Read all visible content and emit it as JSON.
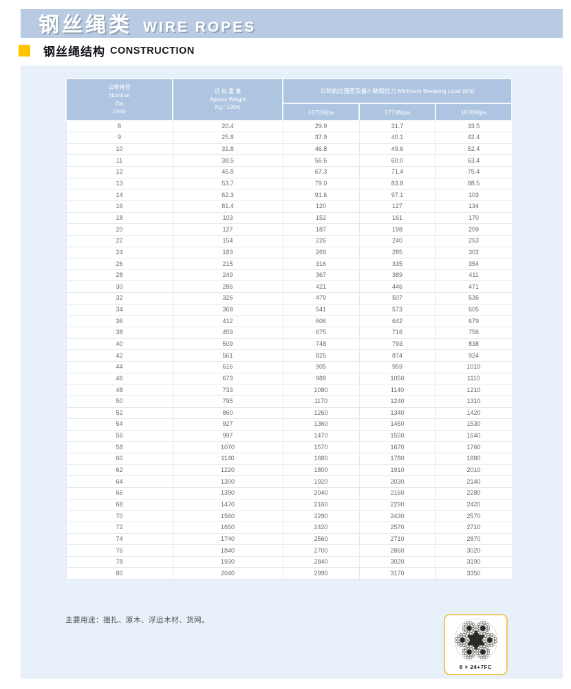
{
  "page": {
    "title_cn": "钢丝绳类",
    "title_en": "WIRE ROPES",
    "section_cn": "钢丝绳结构",
    "section_en": "CONSTRUCTION",
    "footer_note": "主要用途：捆扎、原木、浮运木材、货网。",
    "diagram_label": "6 × 24+7FC"
  },
  "colors": {
    "banner_bg": "#b8cbe2",
    "accent_yellow": "#ffc501",
    "panel_bg": "#e8f0f9",
    "table_header_bg": "#aec5e1",
    "body_text": "#68696c",
    "diagram_border": "#ecc95a"
  },
  "table": {
    "col1_header": [
      "公称直径",
      "Nominal",
      "Dia",
      "(mm)"
    ],
    "col2_header": [
      "近 似 重 量",
      "Approx Weight",
      "Kg / 100m"
    ],
    "merged_header": "公称抗拉强度及最小破断拉力 Minimum Breaking Load (KN)",
    "sub_headers": [
      "1670Mpa",
      "1770Mpa",
      "1870Mpa"
    ],
    "rows": [
      [
        "8",
        "20.4",
        "29.9",
        "31.7",
        "33.5"
      ],
      [
        "9",
        "25.8",
        "37.9",
        "40.1",
        "42.4"
      ],
      [
        "10",
        "31.8",
        "46.8",
        "49.6",
        "52.4"
      ],
      [
        "11",
        "38.5",
        "56.6",
        "60.0",
        "63.4"
      ],
      [
        "12",
        "45.8",
        "67.3",
        "71.4",
        "75.4"
      ],
      [
        "13",
        "53.7",
        "79.0",
        "83.8",
        "88.5"
      ],
      [
        "14",
        "62.3",
        "91.6",
        "97.1",
        "103"
      ],
      [
        "16",
        "81.4",
        "120",
        "127",
        "134"
      ],
      [
        "18",
        "103",
        "152",
        "161",
        "170"
      ],
      [
        "20",
        "127",
        "187",
        "198",
        "209"
      ],
      [
        "22",
        "154",
        "226",
        "240",
        "253"
      ],
      [
        "24",
        "183",
        "269",
        "285",
        "302"
      ],
      [
        "26",
        "215",
        "316",
        "335",
        "354"
      ],
      [
        "28",
        "249",
        "367",
        "389",
        "411"
      ],
      [
        "30",
        "286",
        "421",
        "446",
        "471"
      ],
      [
        "32",
        "326",
        "479",
        "507",
        "536"
      ],
      [
        "34",
        "368",
        "541",
        "573",
        "605"
      ],
      [
        "36",
        "412",
        "606",
        "642",
        "679"
      ],
      [
        "38",
        "459",
        "675",
        "716",
        "756"
      ],
      [
        "40",
        "509",
        "748",
        "793",
        "838"
      ],
      [
        "42",
        "561",
        "825",
        "874",
        "924"
      ],
      [
        "44",
        "616",
        "905",
        "959",
        "1010"
      ],
      [
        "46",
        "673",
        "989",
        "1050",
        "1110"
      ],
      [
        "48",
        "733",
        "1080",
        "1140",
        "1210"
      ],
      [
        "50",
        "795",
        "1170",
        "1240",
        "1310"
      ],
      [
        "52",
        "860",
        "1260",
        "1340",
        "1420"
      ],
      [
        "54",
        "927",
        "1360",
        "1450",
        "1530"
      ],
      [
        "56",
        "997",
        "1470",
        "1550",
        "1640"
      ],
      [
        "58",
        "1070",
        "1570",
        "1670",
        "1760"
      ],
      [
        "60",
        "1140",
        "1680",
        "1780",
        "1880"
      ],
      [
        "62",
        "1220",
        "1800",
        "1910",
        "2010"
      ],
      [
        "64",
        "1300",
        "1920",
        "2030",
        "2140"
      ],
      [
        "66",
        "1390",
        "2040",
        "2160",
        "2280"
      ],
      [
        "68",
        "1470",
        "2160",
        "2290",
        "2420"
      ],
      [
        "70",
        "1560",
        "2290",
        "2430",
        "2570"
      ],
      [
        "72",
        "1650",
        "2420",
        "2570",
        "2710"
      ],
      [
        "74",
        "1740",
        "2560",
        "2710",
        "2870"
      ],
      [
        "76",
        "1840",
        "2700",
        "2860",
        "3020"
      ],
      [
        "78",
        "1930",
        "2840",
        "3020",
        "3190"
      ],
      [
        "80",
        "2040",
        "2990",
        "3170",
        "3350"
      ]
    ]
  }
}
